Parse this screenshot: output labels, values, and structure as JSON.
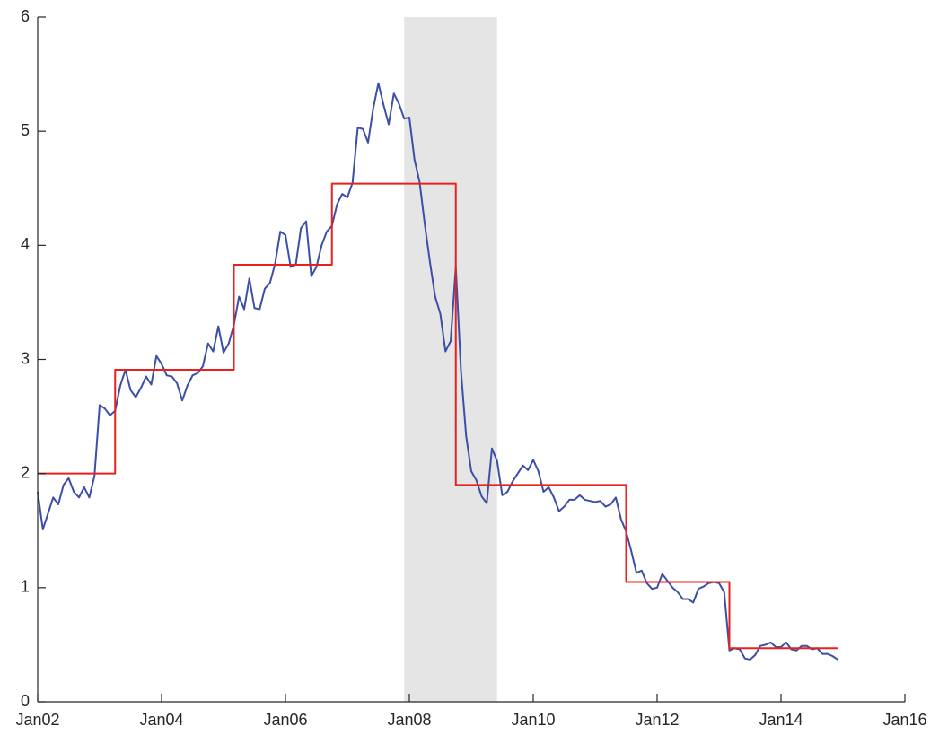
{
  "chart_data": {
    "type": "line",
    "x": [
      "2002-01",
      "2002-02",
      "2002-03",
      "2002-04",
      "2002-05",
      "2002-06",
      "2002-07",
      "2002-08",
      "2002-09",
      "2002-10",
      "2002-11",
      "2002-12",
      "2003-01",
      "2003-02",
      "2003-03",
      "2003-04",
      "2003-05",
      "2003-06",
      "2003-07",
      "2003-08",
      "2003-09",
      "2003-10",
      "2003-11",
      "2003-12",
      "2004-01",
      "2004-02",
      "2004-03",
      "2004-04",
      "2004-05",
      "2004-06",
      "2004-07",
      "2004-08",
      "2004-09",
      "2004-10",
      "2004-11",
      "2004-12",
      "2005-01",
      "2005-02",
      "2005-03",
      "2005-04",
      "2005-05",
      "2005-06",
      "2005-07",
      "2005-08",
      "2005-09",
      "2005-10",
      "2005-11",
      "2005-12",
      "2006-01",
      "2006-02",
      "2006-03",
      "2006-04",
      "2006-05",
      "2006-06",
      "2006-07",
      "2006-08",
      "2006-09",
      "2006-10",
      "2006-11",
      "2006-12",
      "2007-01",
      "2007-02",
      "2007-03",
      "2007-04",
      "2007-05",
      "2007-06",
      "2007-07",
      "2007-08",
      "2007-09",
      "2007-10",
      "2007-11",
      "2007-12",
      "2008-01",
      "2008-02",
      "2008-03",
      "2008-04",
      "2008-05",
      "2008-06",
      "2008-07",
      "2008-08",
      "2008-09",
      "2008-10",
      "2008-11",
      "2008-12",
      "2009-01",
      "2009-02",
      "2009-03",
      "2009-04",
      "2009-05",
      "2009-06",
      "2009-07",
      "2009-08",
      "2009-09",
      "2009-10",
      "2009-11",
      "2009-12",
      "2010-01",
      "2010-02",
      "2010-03",
      "2010-04",
      "2010-05",
      "2010-06",
      "2010-07",
      "2010-08",
      "2010-09",
      "2010-10",
      "2010-11",
      "2010-12",
      "2011-01",
      "2011-02",
      "2011-03",
      "2011-04",
      "2011-05",
      "2011-06",
      "2011-07",
      "2011-08",
      "2011-09",
      "2011-10",
      "2011-11",
      "2011-12",
      "2012-01",
      "2012-02",
      "2012-03",
      "2012-04",
      "2012-05",
      "2012-06",
      "2012-07",
      "2012-08",
      "2012-09",
      "2012-10",
      "2012-11",
      "2012-12",
      "2013-01",
      "2013-02",
      "2013-03",
      "2013-04",
      "2013-05",
      "2013-06",
      "2013-07",
      "2013-08",
      "2013-09",
      "2013-10",
      "2013-11",
      "2013-12",
      "2014-01",
      "2014-02",
      "2014-03",
      "2014-04",
      "2014-05",
      "2014-06",
      "2014-07",
      "2014-08",
      "2014-09",
      "2014-10",
      "2014-11",
      "2014-12"
    ],
    "series": [
      {
        "color": "#3b4fa8",
        "values": [
          1.84,
          1.51,
          1.65,
          1.79,
          1.73,
          1.9,
          1.96,
          1.84,
          1.79,
          1.88,
          1.79,
          1.98,
          2.6,
          2.57,
          2.51,
          2.55,
          2.77,
          2.91,
          2.73,
          2.67,
          2.75,
          2.85,
          2.78,
          3.03,
          2.96,
          2.86,
          2.85,
          2.79,
          2.64,
          2.77,
          2.86,
          2.88,
          2.94,
          3.14,
          3.07,
          3.29,
          3.06,
          3.14,
          3.3,
          3.55,
          3.44,
          3.71,
          3.45,
          3.44,
          3.62,
          3.67,
          3.84,
          4.12,
          4.09,
          3.81,
          3.83,
          4.15,
          4.21,
          3.73,
          3.81,
          4.0,
          4.12,
          4.17,
          4.36,
          4.45,
          4.42,
          4.55,
          5.03,
          5.02,
          4.9,
          5.2,
          5.42,
          5.23,
          5.06,
          5.33,
          5.24,
          5.11,
          5.12,
          4.75,
          4.55,
          4.18,
          3.85,
          3.55,
          3.4,
          3.07,
          3.16,
          3.81,
          2.9,
          2.33,
          2.02,
          1.94,
          1.8,
          1.74,
          2.22,
          2.11,
          1.81,
          1.84,
          1.93,
          2.0,
          2.07,
          2.03,
          2.12,
          2.02,
          1.84,
          1.88,
          1.79,
          1.67,
          1.71,
          1.77,
          1.77,
          1.81,
          1.77,
          1.76,
          1.75,
          1.76,
          1.71,
          1.73,
          1.79,
          1.6,
          1.49,
          1.32,
          1.13,
          1.15,
          1.04,
          0.99,
          1.0,
          1.12,
          1.06,
          1.0,
          0.96,
          0.9,
          0.9,
          0.87,
          0.99,
          1.01,
          1.04,
          1.05,
          1.04,
          0.96,
          0.45,
          0.47,
          0.46,
          0.38,
          0.37,
          0.41,
          0.49,
          0.5,
          0.52,
          0.48,
          0.48,
          0.52,
          0.46,
          0.45,
          0.49,
          0.49,
          0.46,
          0.47,
          0.42,
          0.42,
          0.4,
          0.37
        ]
      },
      {
        "color": "#e8201e",
        "step": true,
        "values": [
          2.0,
          2.0,
          2.0,
          2.0,
          2.0,
          2.0,
          2.0,
          2.0,
          2.0,
          2.0,
          2.0,
          2.0,
          2.0,
          2.0,
          2.0,
          2.91,
          2.91,
          2.91,
          2.91,
          2.91,
          2.91,
          2.91,
          2.91,
          2.91,
          2.91,
          2.91,
          2.91,
          2.91,
          2.91,
          2.91,
          2.91,
          2.91,
          2.91,
          2.91,
          2.91,
          2.91,
          2.91,
          2.91,
          3.83,
          3.83,
          3.83,
          3.83,
          3.83,
          3.83,
          3.83,
          3.83,
          3.83,
          3.83,
          3.83,
          3.83,
          3.83,
          3.83,
          3.83,
          3.83,
          3.83,
          3.83,
          3.83,
          4.54,
          4.54,
          4.54,
          4.54,
          4.54,
          4.54,
          4.54,
          4.54,
          4.54,
          4.54,
          4.54,
          4.54,
          4.54,
          4.54,
          4.54,
          4.54,
          4.54,
          4.54,
          4.54,
          4.54,
          4.54,
          4.54,
          4.54,
          4.54,
          1.9,
          1.9,
          1.9,
          1.9,
          1.9,
          1.9,
          1.9,
          1.9,
          1.9,
          1.9,
          1.9,
          1.9,
          1.9,
          1.9,
          1.9,
          1.9,
          1.9,
          1.9,
          1.9,
          1.9,
          1.9,
          1.9,
          1.9,
          1.9,
          1.9,
          1.9,
          1.9,
          1.9,
          1.9,
          1.9,
          1.9,
          1.9,
          1.9,
          1.05,
          1.05,
          1.05,
          1.05,
          1.05,
          1.05,
          1.05,
          1.05,
          1.05,
          1.05,
          1.05,
          1.05,
          1.05,
          1.05,
          1.05,
          1.05,
          1.05,
          1.05,
          1.05,
          1.05,
          0.47,
          0.47,
          0.47,
          0.47,
          0.47,
          0.47,
          0.47,
          0.47,
          0.47,
          0.47,
          0.47,
          0.47,
          0.47,
          0.47,
          0.47,
          0.47,
          0.47,
          0.47,
          0.47,
          0.47,
          0.47,
          0.47
        ]
      }
    ],
    "shaded_x": [
      "2007-12",
      "2009-06"
    ],
    "shade_color": "#e5e5e5",
    "xlim": [
      "2002-01",
      "2016-01"
    ],
    "xticks": [
      {
        "value": "2002-01",
        "label": "Jan02"
      },
      {
        "value": "2004-01",
        "label": "Jan04"
      },
      {
        "value": "2006-01",
        "label": "Jan06"
      },
      {
        "value": "2008-01",
        "label": "Jan08"
      },
      {
        "value": "2010-01",
        "label": "Jan10"
      },
      {
        "value": "2012-01",
        "label": "Jan12"
      },
      {
        "value": "2014-01",
        "label": "Jan14"
      },
      {
        "value": "2016-01",
        "label": "Jan16"
      }
    ],
    "ylim": [
      0,
      6
    ],
    "yticks": [
      0,
      1,
      2,
      3,
      4,
      5,
      6
    ],
    "grid": false
  }
}
